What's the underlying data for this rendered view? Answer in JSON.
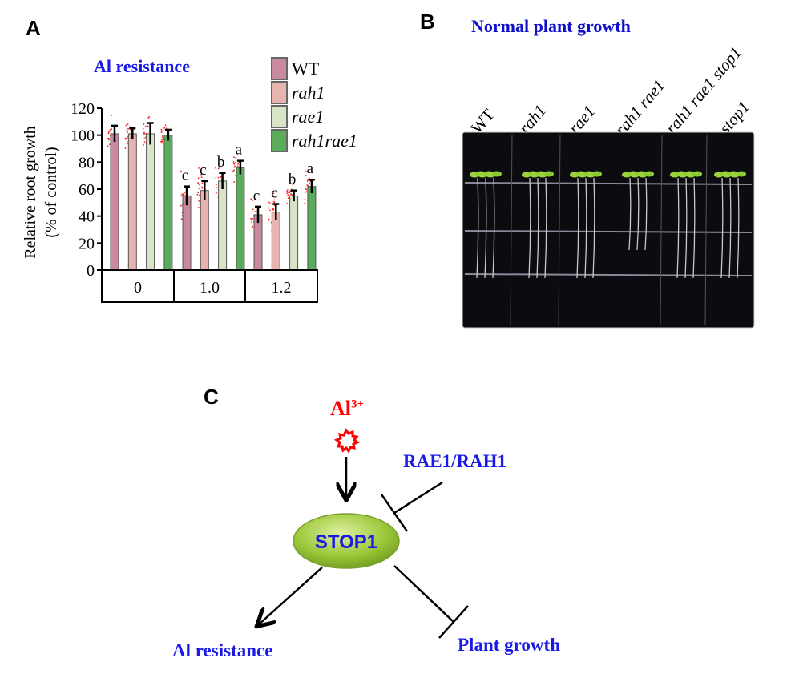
{
  "panels": {
    "a": "A",
    "b": "B",
    "c": "C"
  },
  "chart_data": {
    "type": "bar",
    "title": "Al resistance",
    "ylabel": "Relative root growth",
    "ylabel2": "(% of control)",
    "xlabel": "",
    "categories": [
      "0",
      "1.0",
      "1.2"
    ],
    "ylim": [
      0,
      120
    ],
    "yticks": [
      "0",
      "20",
      "40",
      "60",
      "80",
      "100",
      "120"
    ],
    "legend_position": "top-right",
    "series": [
      {
        "name": "WT",
        "color": "#c98aa0",
        "italic": false,
        "values": [
          101,
          55,
          41
        ],
        "errors": [
          6,
          7,
          6
        ],
        "letters": [
          "",
          "c",
          "c"
        ]
      },
      {
        "name": "rah1",
        "color": "#e8b4b0",
        "italic": true,
        "values": [
          101,
          59,
          43
        ],
        "errors": [
          4,
          7,
          6
        ],
        "letters": [
          "",
          "c",
          "c"
        ]
      },
      {
        "name": "rae1",
        "color": "#d8e4c6",
        "italic": true,
        "values": [
          101,
          66,
          55
        ],
        "errors": [
          8,
          6,
          4
        ],
        "letters": [
          "",
          "b",
          "b"
        ]
      },
      {
        "name": "rah1rae1",
        "color": "#5aab5a",
        "italic": true,
        "values": [
          100,
          76,
          62
        ],
        "errors": [
          4,
          5,
          5
        ],
        "letters": [
          "",
          "a",
          "a"
        ]
      }
    ],
    "point_color": "#ff2020"
  },
  "photo": {
    "title": "Normal plant growth",
    "genotypes": [
      "WT",
      "rah1",
      "rae1",
      "rah1 rae1",
      "rah1 rae1 stop1",
      "stop1"
    ]
  },
  "diagram": {
    "stimulus": "Al",
    "stimulus_sup": "3+",
    "inhibitor": "RAE1/RAH1",
    "center": "STOP1",
    "output_promoted": "Al resistance",
    "output_inhibited": "Plant growth",
    "colors": {
      "blue": "#1a1ae6",
      "red": "#ff0000",
      "green": "#8dbb2a"
    }
  }
}
